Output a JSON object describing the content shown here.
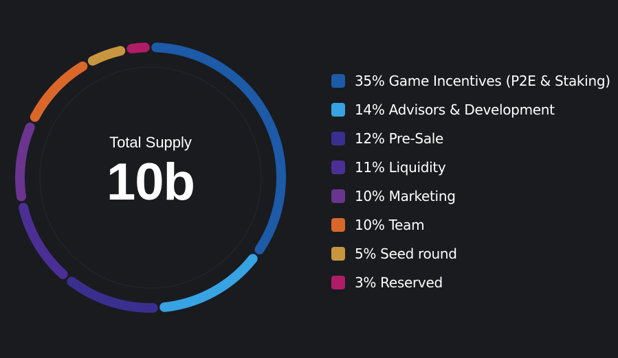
{
  "chart_data": {
    "type": "pie",
    "style": "donut",
    "center": {
      "title": "Total Supply",
      "value": "10b"
    },
    "legend_position": "right",
    "slices": [
      {
        "label": "35% Game Incentives (P2E & Staking)",
        "value": 35,
        "color": "#1d5aa8"
      },
      {
        "label": "14% Advisors & Development",
        "value": 14,
        "color": "#37a3e3"
      },
      {
        "label": "12% Pre-Sale",
        "value": 12,
        "color": "#3a2f8f"
      },
      {
        "label": "11% Liquidity",
        "value": 11,
        "color": "#4b2f95"
      },
      {
        "label": "10% Marketing",
        "value": 10,
        "color": "#6a348f"
      },
      {
        "label": "10% Team",
        "value": 10,
        "color": "#d9672a"
      },
      {
        "label": "5% Seed round",
        "value": 5,
        "color": "#c99640"
      },
      {
        "label": "3% Reserved",
        "value": 3,
        "color": "#b01d66"
      }
    ]
  }
}
